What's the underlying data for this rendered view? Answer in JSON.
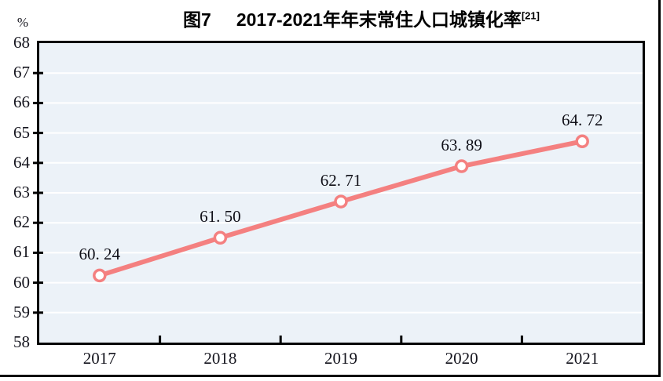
{
  "figure": {
    "title_prefix": "图7",
    "title_main": "2017-2021年年末常住人口城镇化率",
    "title_superscript": "[21]",
    "y_unit": "%"
  },
  "chart_data": {
    "type": "line",
    "title": "图7 2017-2021年年末常住人口城镇化率[21]",
    "categories": [
      "2017",
      "2018",
      "2019",
      "2020",
      "2021"
    ],
    "values": [
      60.24,
      61.5,
      62.71,
      63.89,
      64.72
    ],
    "point_labels": [
      "60. 24",
      "61. 50",
      "62. 71",
      "63. 89",
      "64. 72"
    ],
    "ylabel": "%",
    "xlabel": "",
    "ylim": [
      58,
      68
    ],
    "yticks": [
      58,
      59,
      60,
      61,
      62,
      63,
      64,
      65,
      66,
      67,
      68
    ],
    "grid": "horizontal",
    "legend": "none",
    "colors": {
      "line": "#f48080",
      "marker_fill": "#ffffff",
      "marker_stroke": "#f48080",
      "plot_background": "#ecf2f8",
      "gridline": "#ffffff",
      "axis": "#000000",
      "text": "#15151e"
    }
  }
}
